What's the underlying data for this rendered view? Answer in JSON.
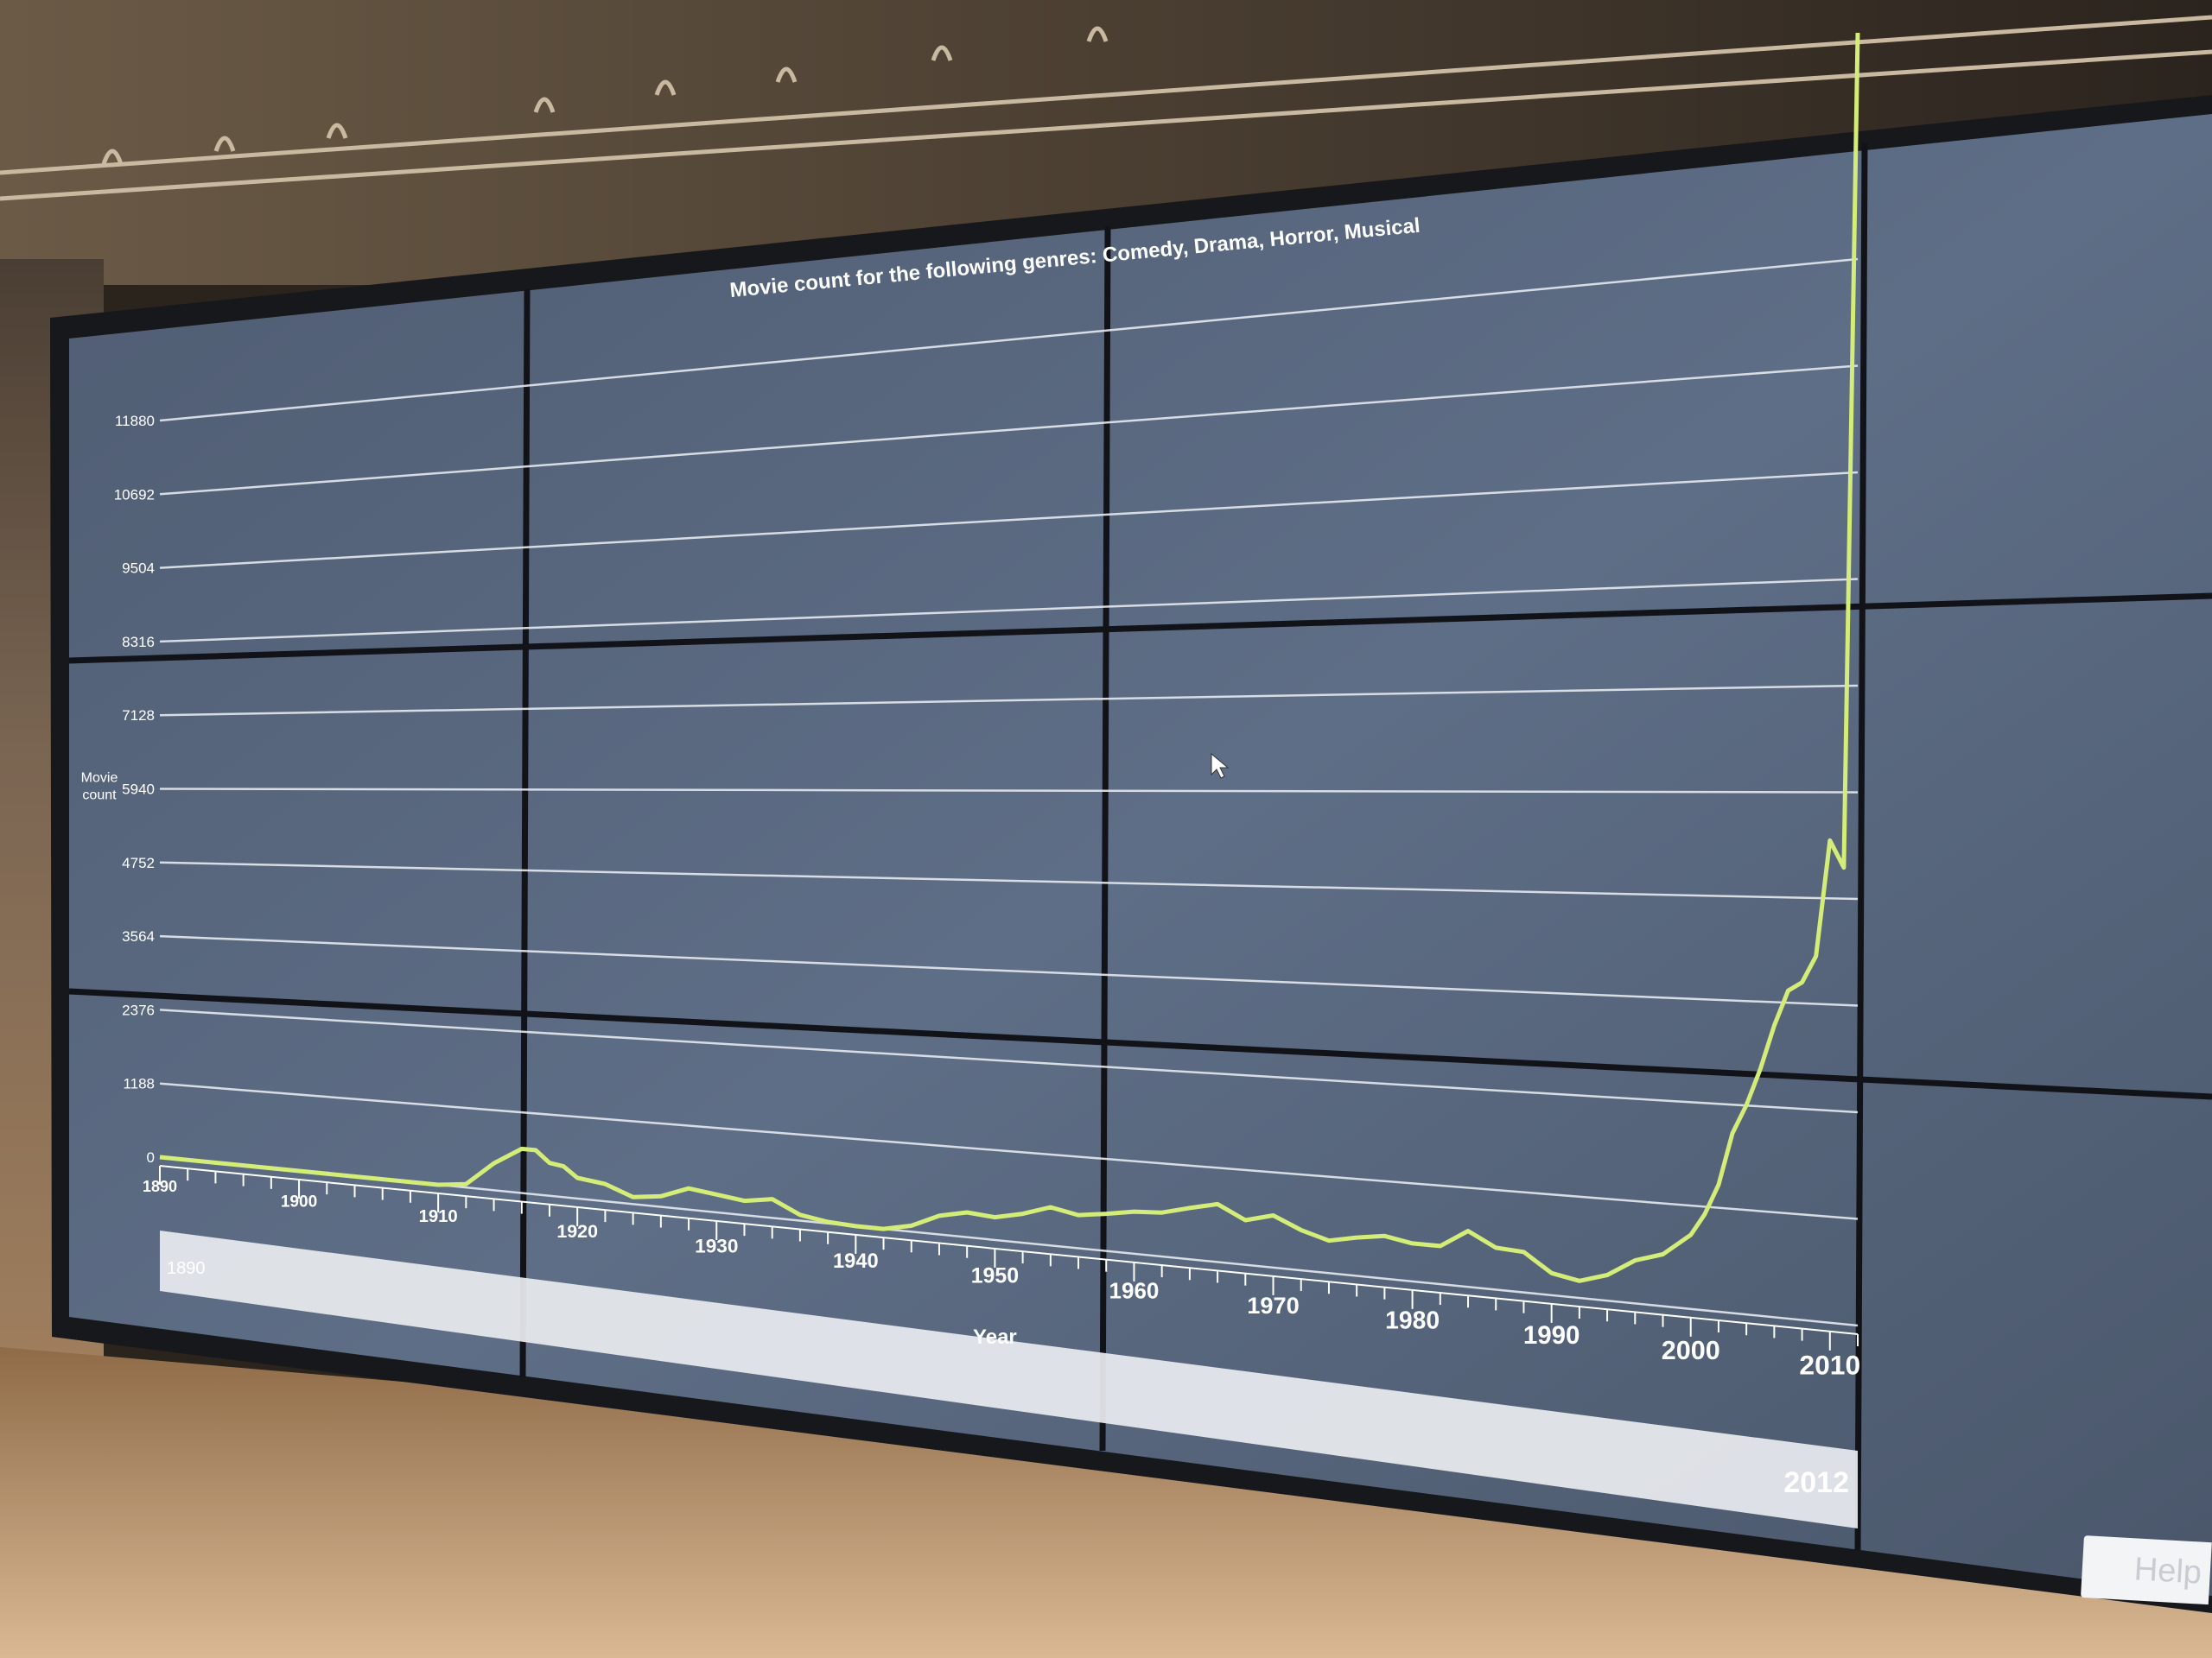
{
  "chart_data": {
    "type": "line",
    "title": "Movie count for the following genres: Comedy, Drama, Horror, Musical",
    "xlabel": "Year",
    "ylabel": "Movie count",
    "xlim": [
      1890,
      2012
    ],
    "ylim": [
      0,
      11880
    ],
    "x_ticks": [
      1890,
      1900,
      1910,
      1920,
      1930,
      1940,
      1950,
      1960,
      1970,
      1980,
      1990,
      2000,
      2010
    ],
    "y_ticks": [
      0,
      1188,
      2376,
      3564,
      4752,
      5940,
      7128,
      8316,
      9504,
      10692,
      11880
    ],
    "grid": true,
    "series": [
      {
        "color": "#d4ec78",
        "x": [
          1890,
          1895,
          1900,
          1905,
          1910,
          1912,
          1914,
          1916,
          1917,
          1918,
          1919,
          1920,
          1922,
          1924,
          1926,
          1928,
          1930,
          1932,
          1934,
          1936,
          1938,
          1940,
          1942,
          1944,
          1946,
          1948,
          1950,
          1952,
          1954,
          1956,
          1958,
          1960,
          1962,
          1964,
          1966,
          1968,
          1970,
          1972,
          1974,
          1976,
          1978,
          1980,
          1982,
          1984,
          1986,
          1988,
          1990,
          1992,
          1994,
          1996,
          1998,
          2000,
          2001,
          2002,
          2003,
          2004,
          2005,
          2006,
          2007,
          2008,
          2009,
          2010,
          2011,
          2012
        ],
        "y": [
          0,
          0,
          0,
          0,
          0,
          50,
          400,
          650,
          650,
          480,
          450,
          300,
          250,
          100,
          150,
          300,
          250,
          200,
          260,
          80,
          20,
          0,
          0,
          80,
          250,
          330,
          300,
          380,
          500,
          430,
          480,
          540,
          560,
          650,
          730,
          560,
          650,
          500,
          400,
          470,
          520,
          460,
          460,
          670,
          500,
          480,
          260,
          200,
          300,
          500,
          600,
          850,
          1100,
          1450,
          2050,
          2380,
          2800,
          3300,
          3700,
          3800,
          4100,
          5400,
          5100,
          14400
        ]
      }
    ]
  },
  "timeline": {
    "start_label": "1890",
    "end_label": "2012"
  },
  "ui": {
    "help_label": "Help"
  }
}
